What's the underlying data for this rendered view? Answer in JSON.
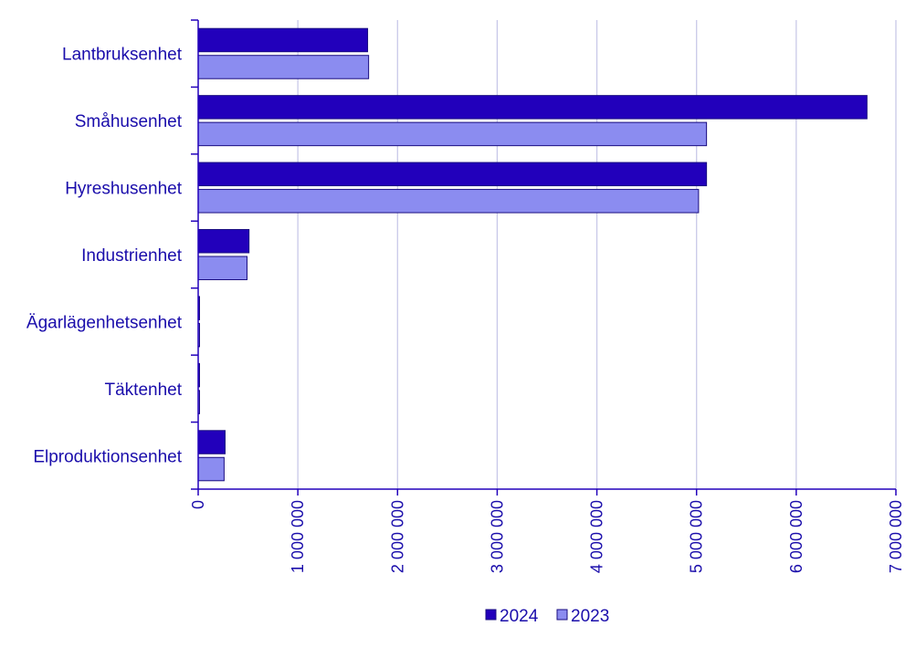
{
  "chart_data": {
    "type": "bar",
    "orientation": "horizontal",
    "categories": [
      "Lantbruksenhet",
      "Småhusenhet",
      "Hyreshusenhet",
      "Industrienhet",
      "Ägarlägenhetsenhet",
      "Täktenhet",
      "Elproduktionsenhet"
    ],
    "series": [
      {
        "name": "2024",
        "color": "#2200bb",
        "values": [
          1700000,
          6710000,
          5100000,
          510000,
          8000,
          12000,
          270000
        ]
      },
      {
        "name": "2023",
        "color": "#8b8cf0",
        "values": [
          1710000,
          5100000,
          5020000,
          490000,
          8000,
          12000,
          260000
        ]
      }
    ],
    "xlim": [
      0,
      7000000
    ],
    "xticks": [
      0,
      1000000,
      2000000,
      3000000,
      4000000,
      5000000,
      6000000,
      7000000
    ],
    "xtick_labels": [
      "0",
      "1 000 000",
      "2 000 000",
      "3 000 000",
      "4 000 000",
      "5 000 000",
      "6 000 000",
      "7 000 000"
    ],
    "grid": "vertical",
    "legend_position": "bottom",
    "title": "",
    "xlabel": "",
    "ylabel": ""
  }
}
